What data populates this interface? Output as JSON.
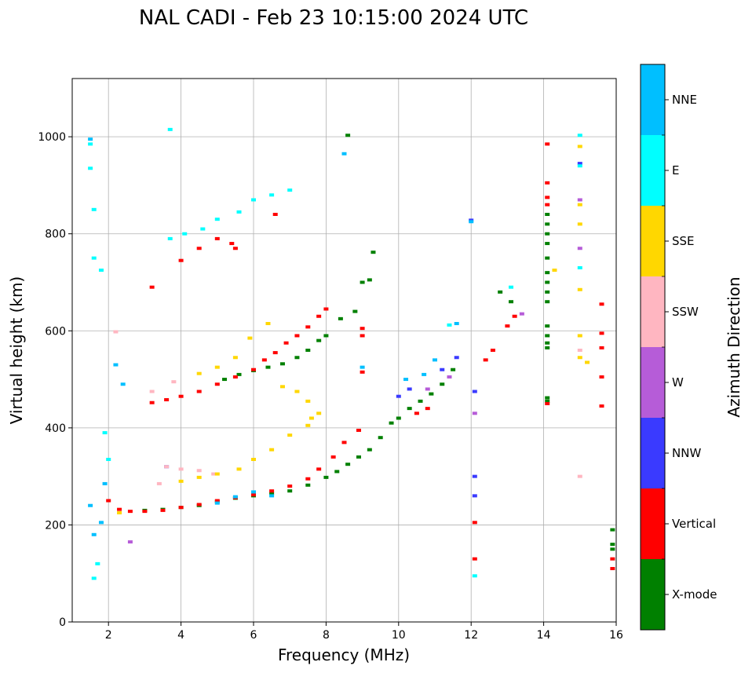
{
  "chart_data": {
    "type": "scatter",
    "title": "NAL CADI - Feb 23 10:15:00 2024 UTC",
    "xlabel": "Frequency (MHz)",
    "ylabel": "Virtual height (km)",
    "xlim": [
      1,
      16
    ],
    "ylim": [
      0,
      1120
    ],
    "xticks": [
      2,
      4,
      6,
      8,
      10,
      12,
      14,
      16
    ],
    "yticks": [
      0,
      200,
      400,
      600,
      800,
      1000
    ],
    "grid": true,
    "colorbar": {
      "label": "Azimuth Direction",
      "categories": [
        {
          "name": "X-mode",
          "color": "#008000"
        },
        {
          "name": "Vertical",
          "color": "#ff0000"
        },
        {
          "name": "NNW",
          "color": "#3a3aff"
        },
        {
          "name": "W",
          "color": "#b65cd8"
        },
        {
          "name": "SSW",
          "color": "#ffb6c1"
        },
        {
          "name": "SSE",
          "color": "#ffd700"
        },
        {
          "name": "E",
          "color": "#00ffff"
        },
        {
          "name": "NNE",
          "color": "#00bfff"
        }
      ]
    },
    "series": [
      {
        "name": "X-mode",
        "points": [
          [
            3.0,
            230
          ],
          [
            3.5,
            232
          ],
          [
            4.0,
            236
          ],
          [
            4.5,
            240
          ],
          [
            5.0,
            248
          ],
          [
            5.5,
            255
          ],
          [
            6.0,
            260
          ],
          [
            6.5,
            265
          ],
          [
            7.0,
            270
          ],
          [
            7.5,
            282
          ],
          [
            8.0,
            298
          ],
          [
            8.3,
            310
          ],
          [
            8.6,
            325
          ],
          [
            8.9,
            340
          ],
          [
            9.2,
            355
          ],
          [
            9.5,
            380
          ],
          [
            9.8,
            410
          ],
          [
            10.0,
            420
          ],
          [
            10.3,
            440
          ],
          [
            10.6,
            455
          ],
          [
            10.9,
            470
          ],
          [
            11.2,
            490
          ],
          [
            11.5,
            520
          ],
          [
            5.2,
            500
          ],
          [
            5.6,
            510
          ],
          [
            6.0,
            518
          ],
          [
            6.4,
            525
          ],
          [
            6.8,
            532
          ],
          [
            7.2,
            545
          ],
          [
            7.5,
            560
          ],
          [
            7.8,
            580
          ],
          [
            8.0,
            590
          ],
          [
            8.4,
            625
          ],
          [
            8.8,
            640
          ],
          [
            9.0,
            700
          ],
          [
            9.2,
            705
          ],
          [
            9.3,
            762
          ],
          [
            8.6,
            1003
          ],
          [
            12.8,
            680
          ],
          [
            13.1,
            660
          ],
          [
            14.1,
            565
          ],
          [
            14.1,
            575
          ],
          [
            14.1,
            590
          ],
          [
            14.1,
            610
          ],
          [
            14.1,
            660
          ],
          [
            14.1,
            680
          ],
          [
            14.1,
            700
          ],
          [
            14.1,
            720
          ],
          [
            14.1,
            750
          ],
          [
            14.1,
            780
          ],
          [
            14.1,
            800
          ],
          [
            14.1,
            820
          ],
          [
            14.1,
            840
          ],
          [
            14.1,
            455
          ],
          [
            14.1,
            462
          ],
          [
            15.9,
            190
          ],
          [
            15.9,
            160
          ],
          [
            15.9,
            150
          ]
        ]
      },
      {
        "name": "Vertical",
        "points": [
          [
            2.0,
            250
          ],
          [
            2.3,
            232
          ],
          [
            2.6,
            228
          ],
          [
            3.0,
            228
          ],
          [
            3.5,
            230
          ],
          [
            4.0,
            236
          ],
          [
            4.5,
            242
          ],
          [
            5.0,
            250
          ],
          [
            5.5,
            256
          ],
          [
            6.0,
            262
          ],
          [
            6.5,
            270
          ],
          [
            7.0,
            280
          ],
          [
            7.5,
            295
          ],
          [
            7.8,
            315
          ],
          [
            8.2,
            340
          ],
          [
            8.5,
            370
          ],
          [
            8.9,
            395
          ],
          [
            3.2,
            452
          ],
          [
            3.6,
            458
          ],
          [
            4.0,
            465
          ],
          [
            4.5,
            475
          ],
          [
            5.0,
            490
          ],
          [
            5.5,
            505
          ],
          [
            6.0,
            520
          ],
          [
            6.3,
            540
          ],
          [
            6.6,
            555
          ],
          [
            6.9,
            575
          ],
          [
            7.2,
            590
          ],
          [
            7.5,
            608
          ],
          [
            7.8,
            630
          ],
          [
            8.0,
            645
          ],
          [
            3.2,
            690
          ],
          [
            4.0,
            745
          ],
          [
            4.5,
            770
          ],
          [
            5.0,
            790
          ],
          [
            5.4,
            780
          ],
          [
            5.5,
            770
          ],
          [
            6.6,
            840
          ],
          [
            9.0,
            515
          ],
          [
            9.0,
            590
          ],
          [
            9.0,
            605
          ],
          [
            10.5,
            430
          ],
          [
            10.8,
            440
          ],
          [
            12.4,
            540
          ],
          [
            12.6,
            560
          ],
          [
            13.0,
            610
          ],
          [
            13.2,
            630
          ],
          [
            14.1,
            860
          ],
          [
            14.1,
            875
          ],
          [
            14.1,
            905
          ],
          [
            14.1,
            985
          ],
          [
            14.1,
            450
          ],
          [
            15.6,
            655
          ],
          [
            15.6,
            595
          ],
          [
            15.6,
            565
          ],
          [
            15.6,
            505
          ],
          [
            15.6,
            445
          ],
          [
            15.9,
            110
          ],
          [
            15.9,
            130
          ],
          [
            12.1,
            205
          ],
          [
            12.1,
            130
          ]
        ]
      },
      {
        "name": "NNW",
        "points": [
          [
            3.6,
            320
          ],
          [
            12.1,
            300
          ],
          [
            12.1,
            260
          ],
          [
            10.0,
            465
          ],
          [
            10.3,
            480
          ],
          [
            11.2,
            520
          ],
          [
            11.6,
            545
          ],
          [
            12.1,
            475
          ],
          [
            12.0,
            828
          ],
          [
            15.0,
            945
          ]
        ]
      },
      {
        "name": "W",
        "points": [
          [
            2.6,
            165
          ],
          [
            10.8,
            480
          ],
          [
            11.4,
            505
          ],
          [
            12.1,
            430
          ],
          [
            15.0,
            870
          ],
          [
            15.0,
            770
          ],
          [
            13.4,
            635
          ]
        ]
      },
      {
        "name": "SSW",
        "points": [
          [
            3.6,
            320
          ],
          [
            4.0,
            315
          ],
          [
            4.5,
            312
          ],
          [
            4.9,
            305
          ],
          [
            3.4,
            285
          ],
          [
            2.2,
            598
          ],
          [
            3.2,
            475
          ],
          [
            3.8,
            495
          ],
          [
            15.0,
            560
          ],
          [
            15.0,
            300
          ]
        ]
      },
      {
        "name": "SSE",
        "points": [
          [
            4.0,
            290
          ],
          [
            4.5,
            298
          ],
          [
            5.0,
            305
          ],
          [
            5.6,
            315
          ],
          [
            6.0,
            335
          ],
          [
            6.5,
            355
          ],
          [
            7.0,
            385
          ],
          [
            7.5,
            405
          ],
          [
            7.8,
            430
          ],
          [
            4.5,
            512
          ],
          [
            5.0,
            525
          ],
          [
            5.5,
            545
          ],
          [
            5.9,
            585
          ],
          [
            6.4,
            615
          ],
          [
            6.8,
            485
          ],
          [
            7.2,
            475
          ],
          [
            7.5,
            455
          ],
          [
            7.6,
            420
          ],
          [
            15.0,
            980
          ],
          [
            15.0,
            860
          ],
          [
            15.0,
            820
          ],
          [
            15.0,
            685
          ],
          [
            15.0,
            590
          ],
          [
            15.0,
            545
          ],
          [
            15.2,
            535
          ],
          [
            14.3,
            725
          ],
          [
            2.3,
            225
          ]
        ]
      },
      {
        "name": "E",
        "points": [
          [
            1.5,
            985
          ],
          [
            1.5,
            935
          ],
          [
            1.6,
            850
          ],
          [
            3.7,
            1015
          ],
          [
            3.7,
            790
          ],
          [
            4.1,
            800
          ],
          [
            4.6,
            810
          ],
          [
            5.0,
            830
          ],
          [
            5.6,
            845
          ],
          [
            6.0,
            870
          ],
          [
            6.5,
            880
          ],
          [
            7.0,
            890
          ],
          [
            1.6,
            750
          ],
          [
            1.8,
            725
          ],
          [
            1.9,
            390
          ],
          [
            2.0,
            335
          ],
          [
            1.6,
            90
          ],
          [
            1.7,
            120
          ],
          [
            11.4,
            612
          ],
          [
            13.1,
            690
          ],
          [
            15.0,
            1003
          ],
          [
            15.0,
            940
          ],
          [
            15.0,
            730
          ],
          [
            12.1,
            95
          ]
        ]
      },
      {
        "name": "NNE",
        "points": [
          [
            1.5,
            995
          ],
          [
            8.5,
            965
          ],
          [
            2.2,
            530
          ],
          [
            2.4,
            490
          ],
          [
            5.0,
            245
          ],
          [
            5.5,
            258
          ],
          [
            6.0,
            268
          ],
          [
            6.5,
            260
          ],
          [
            9.0,
            525
          ],
          [
            10.2,
            500
          ],
          [
            10.7,
            510
          ],
          [
            11.0,
            540
          ],
          [
            11.6,
            615
          ],
          [
            12.0,
            825
          ],
          [
            1.5,
            240
          ],
          [
            1.6,
            180
          ],
          [
            1.8,
            205
          ],
          [
            1.9,
            285
          ]
        ]
      }
    ]
  }
}
